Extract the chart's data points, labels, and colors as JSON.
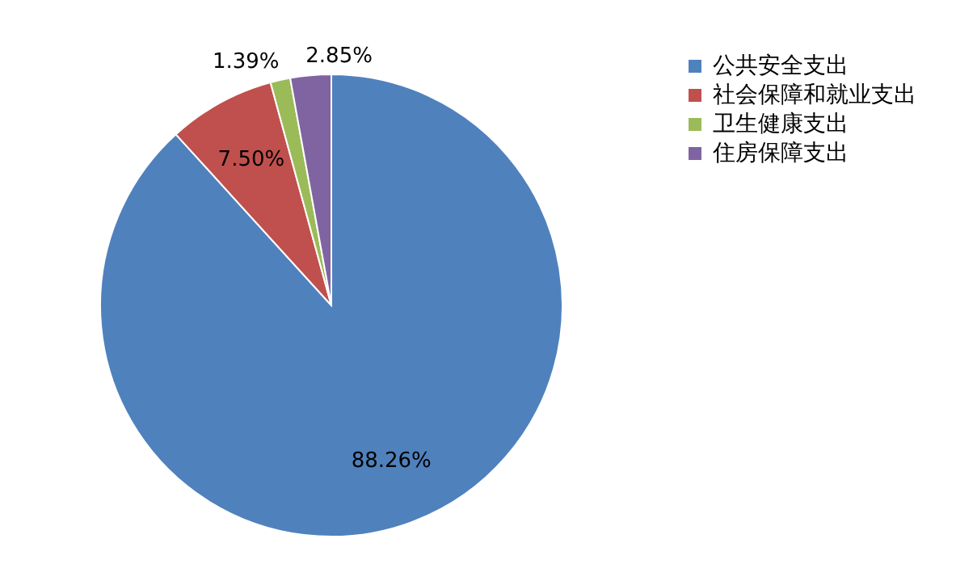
{
  "chart_data": {
    "type": "pie",
    "categories": [
      "公共安全支出",
      "社会保障和就业支出",
      "卫生健康支出",
      "住房保障支出"
    ],
    "values": [
      88.26,
      7.5,
      1.39,
      2.85
    ],
    "colors": [
      "#4f81bd",
      "#c0504d",
      "#9bbb59",
      "#8064a2"
    ],
    "value_labels": [
      "88.26%",
      "7.50%",
      "1.39%",
      "2.85%"
    ],
    "legend": "right"
  }
}
